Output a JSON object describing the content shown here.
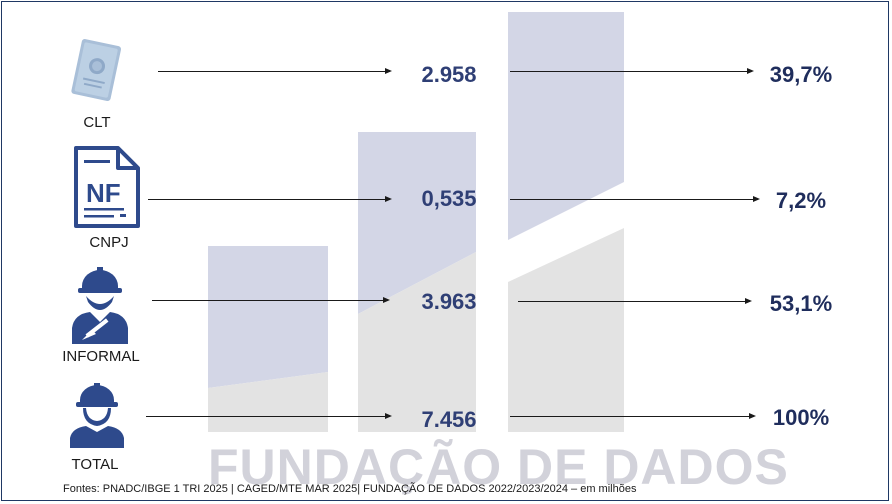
{
  "rows": [
    {
      "label": "CLT",
      "value": "2.958",
      "percent": "39,7%",
      "icon": "work-card-icon"
    },
    {
      "label": "CNPJ",
      "value": "0,535",
      "percent": "7,2%",
      "icon": "invoice-nf-icon"
    },
    {
      "label": "INFORMAL",
      "value": "3.963",
      "percent": "53,1%",
      "icon": "worker-trowel-icon"
    },
    {
      "label": "TOTAL",
      "value": "7.456",
      "percent": "100%",
      "icon": "worker-hardhat-icon"
    }
  ],
  "nf_text": "NF",
  "watermark": "FUNDAÇÃO DE DADOS",
  "source": "Fontes: PNADC/IBGE 1 TRI 2025 | CAGED/MTE MAR 2025| FUNDAÇÃO DE DADOS 2022/2023/2024 – em milhões",
  "colors": {
    "navy": "#1f3864",
    "bar_blue": "#d3d6e6",
    "bar_gray": "#e3e3e3",
    "icon_blue": "#2e4a8c"
  }
}
